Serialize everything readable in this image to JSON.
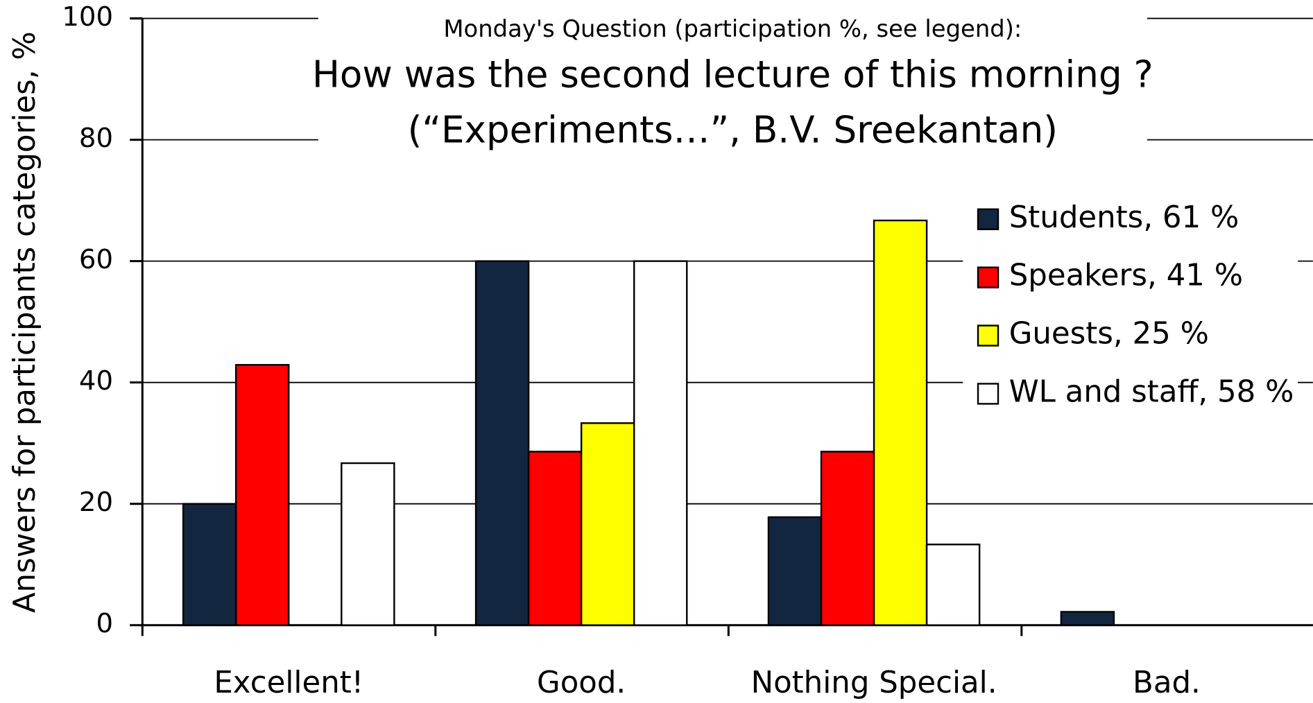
{
  "chart_data": {
    "type": "bar",
    "subtitle": "Monday's Question (participation  %, see legend):",
    "title": [
      "How was the second lecture of this morning ?",
      "(“Experiments…”, B.V. Sreekantan)"
    ],
    "y_label": "Answers for participants categories, %",
    "categories": [
      "Excellent!",
      "Good.",
      "Nothing Special.",
      "Bad."
    ],
    "series": [
      {
        "name": "Students, 61 %",
        "color": "#132640",
        "values": [
          20,
          60,
          17.8,
          2.2
        ]
      },
      {
        "name": "Speakers, 41 %",
        "color": "#ff0000",
        "values": [
          42.9,
          28.6,
          28.6,
          0
        ]
      },
      {
        "name": "Guests, 25 %",
        "color": "#ffff00",
        "values": [
          0,
          33.3,
          66.7,
          0
        ]
      },
      {
        "name": "WL and staff, 58 %",
        "color": "#ffffff",
        "values": [
          26.7,
          60,
          13.3,
          0
        ]
      }
    ],
    "ylim": [
      0,
      100
    ],
    "yticks": [
      0,
      20,
      40,
      60,
      80,
      100
    ],
    "grid": true,
    "legend": "right"
  }
}
